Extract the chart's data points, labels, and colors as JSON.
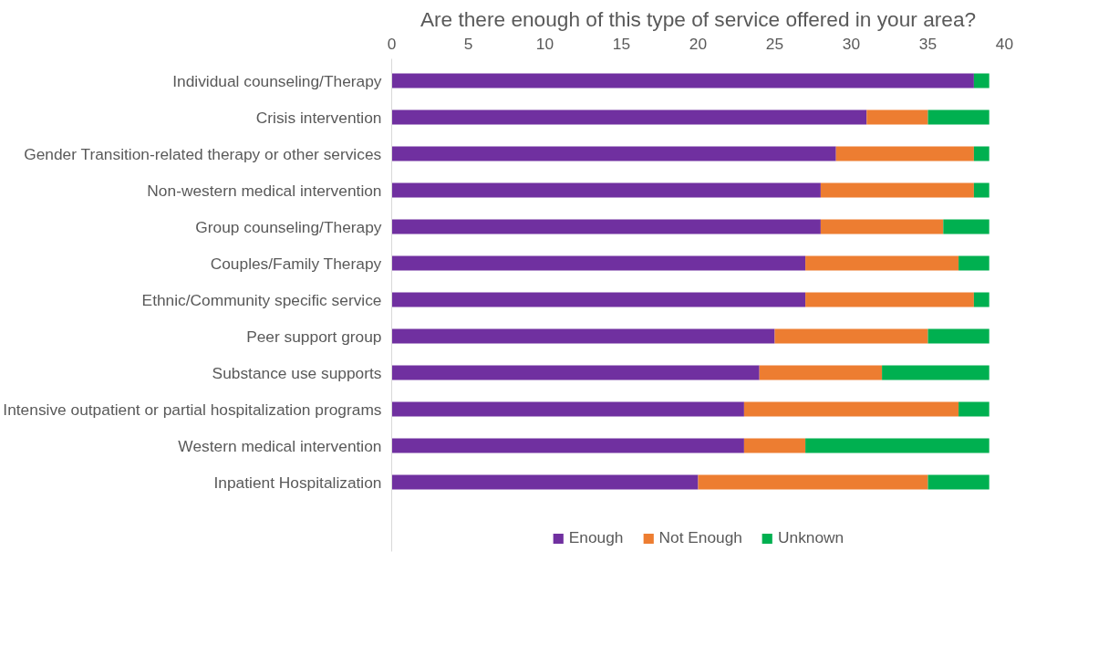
{
  "chart_data": {
    "type": "bar",
    "orientation": "horizontal",
    "stacked": true,
    "title": "Are there enough of this type of service offered in your area?",
    "categories": [
      "Individual counseling/Therapy",
      "Crisis intervention",
      "Gender Transition-related therapy or other services",
      "Non-western medical intervention",
      "Group counseling/Therapy",
      "Couples/Family Therapy",
      "Ethnic/Community specific service",
      "Peer support group",
      "Substance use supports",
      "Intensive outpatient or partial hospitalization programs",
      "Western medical intervention",
      "Inpatient Hospitalization"
    ],
    "series": [
      {
        "name": "Enough",
        "color": "#7030a0",
        "values": [
          38,
          31,
          29,
          28,
          28,
          27,
          27,
          25,
          24,
          23,
          23,
          20
        ]
      },
      {
        "name": "Not Enough",
        "color": "#ed7d31",
        "values": [
          0,
          4,
          9,
          10,
          8,
          10,
          11,
          10,
          8,
          14,
          4,
          15
        ]
      },
      {
        "name": "Unknown",
        "color": "#00b050",
        "values": [
          1,
          4,
          1,
          1,
          3,
          2,
          1,
          4,
          7,
          2,
          12,
          4
        ]
      }
    ],
    "xlim": [
      0,
      40
    ],
    "xticks": [
      0,
      5,
      10,
      15,
      20,
      25,
      30,
      35,
      40
    ],
    "grid": false,
    "legend": "bottom"
  }
}
